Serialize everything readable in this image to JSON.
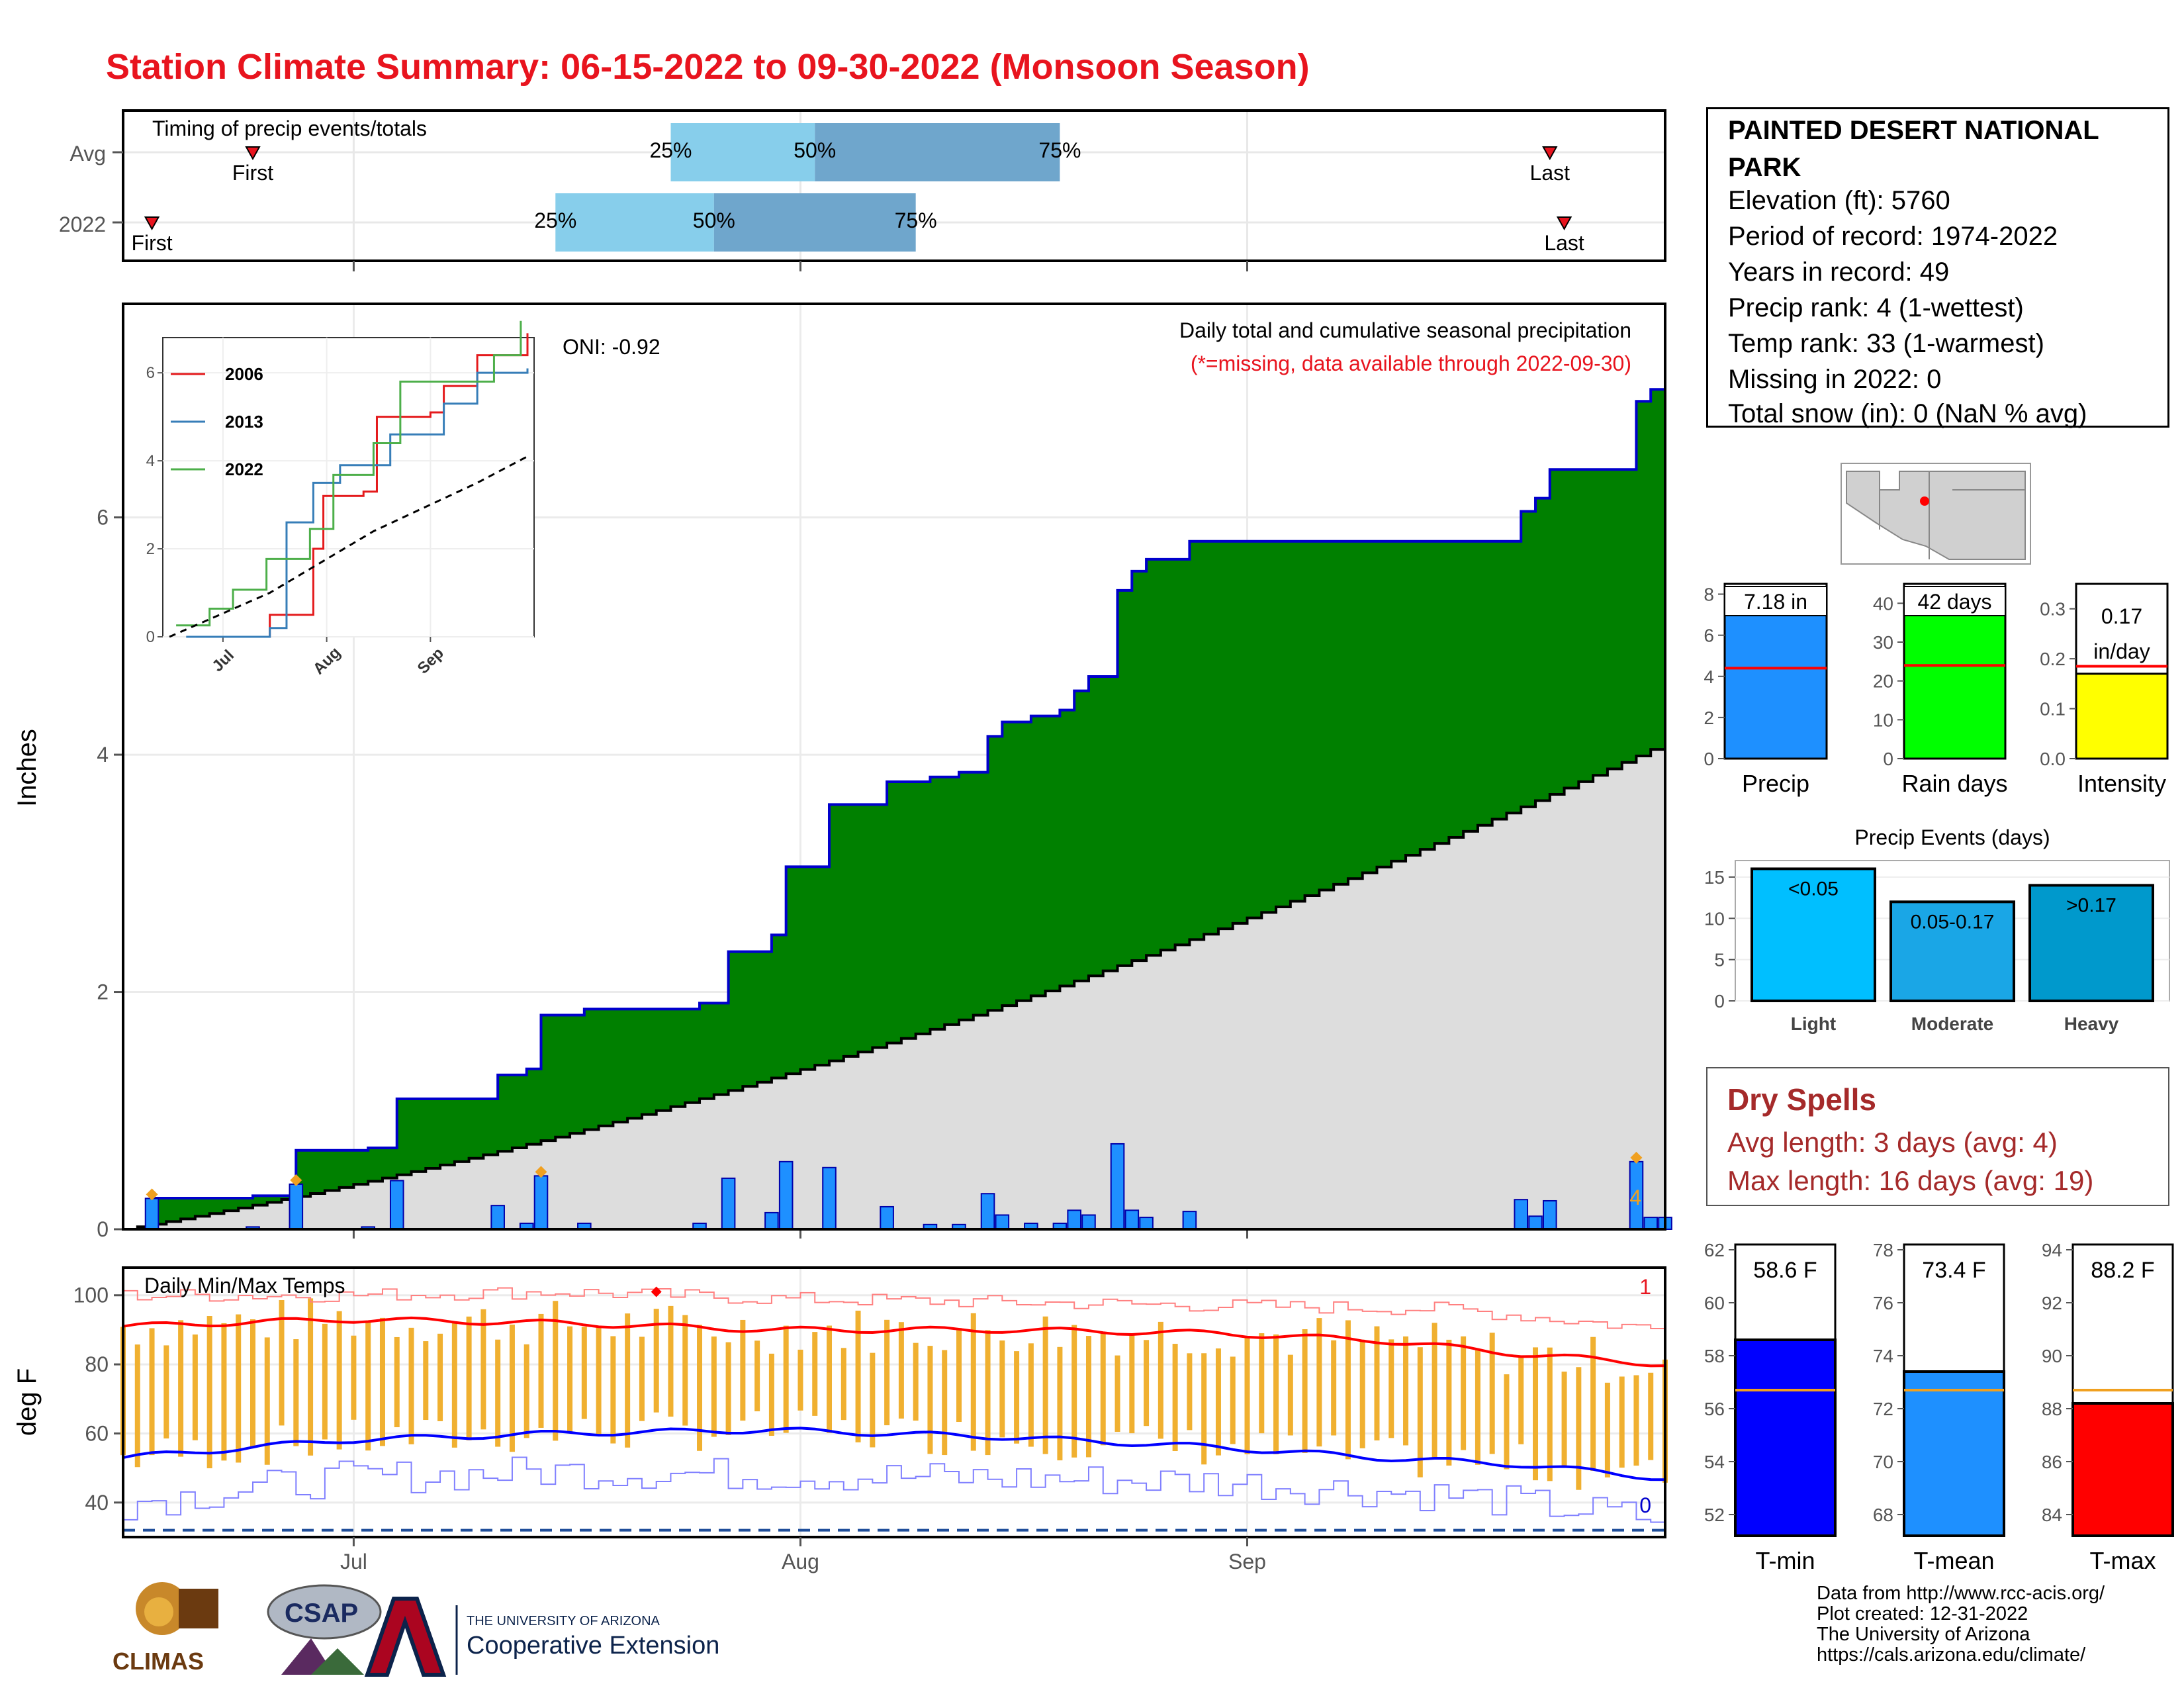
{
  "title": "Station Climate Summary: 06-15-2022 to 09-30-2022 (Monsoon Season)",
  "colors": {
    "title": "#e8141e",
    "cum_fill": "#008000",
    "cum_line": "#0000cc",
    "normal_fill": "#dddddd",
    "daily_bar": "#1e90ff",
    "quartile_light": "#87ceeb",
    "quartile_dark": "#6fa6cc",
    "tmax": "#ff0000",
    "tmin": "#0000ff",
    "temp_range": "#f0b030",
    "dry": "#a52a2a"
  },
  "timing_panel": {
    "label": "Timing of precip events/totals",
    "rows": [
      {
        "name": "Avg",
        "first_date": "2022-06-24",
        "last_date": "2022-09-22",
        "q25_date": "2022-07-23",
        "q50_date": "2022-08-02",
        "q75_date": "2022-08-19",
        "first_label": "First",
        "last_label": "Last",
        "q25_label": "25%",
        "q50_label": "50%",
        "q75_label": "75%"
      },
      {
        "name": "2022",
        "first_date": "2022-06-17",
        "last_date": "2022-09-23",
        "q25_date": "2022-07-15",
        "q50_date": "2022-07-26",
        "q75_date": "2022-08-09",
        "first_label": "First",
        "last_label": "Last",
        "q25_label": "25%",
        "q50_label": "50%",
        "q75_label": "75%"
      }
    ]
  },
  "precip_panel": {
    "ylabel": "Inches",
    "title": "Daily total and cumulative seasonal precipitation",
    "subtitle": "(*=missing, data available through 2022-09-30)",
    "oni": "ONI: -0.92",
    "corner_count": "4",
    "yticks": [
      "0",
      "2",
      "4",
      "6"
    ],
    "ylim": [
      0,
      7.8
    ]
  },
  "inset": {
    "yticks": [
      "0",
      "2",
      "4",
      "6"
    ],
    "xticks": [
      "Jul",
      "Aug",
      "Sep"
    ],
    "legend": [
      {
        "name": "2006",
        "color": "#e41a1c"
      },
      {
        "name": "2013",
        "color": "#377eb8"
      },
      {
        "name": "2022",
        "color": "#4daf4a"
      }
    ]
  },
  "temp_panel": {
    "label": "Daily Min/Max Temps",
    "ylabel": "deg F",
    "yticks": [
      "40",
      "60",
      "80",
      "100"
    ],
    "ylim": [
      30,
      108
    ],
    "record_high_count": "1",
    "record_low_count": "0",
    "freezing_line": 32
  },
  "xticks": [
    "Jul",
    "Aug",
    "Sep"
  ],
  "station": {
    "name_line1": "PAINTED DESERT NATIONAL",
    "name_line2": "PARK",
    "elevation": "Elevation (ft): 5760",
    "period": "Period of record: 1974-2022",
    "years": "Years in record: 49",
    "precip_rank": "Precip rank: 4 (1-wettest)",
    "temp_rank": "Temp rank: 33 (1-warmest)",
    "missing": "Missing in 2022: 0",
    "snow": "Total snow (in): 0 (NaN % avg)"
  },
  "small_bars": [
    {
      "label": "Precip",
      "value": 7.18,
      "value_label": "7.18 in",
      "avg": 4.4,
      "ymax": 8.5,
      "ticks": [
        "0",
        "2",
        "4",
        "6",
        "8"
      ],
      "tick_vals": [
        0,
        2,
        4,
        6,
        8
      ],
      "color": "#1e90ff"
    },
    {
      "label": "Rain days",
      "value": 42,
      "value_label": "42 days",
      "avg": 24,
      "ymax": 45,
      "ticks": [
        "0",
        "10",
        "20",
        "30",
        "40"
      ],
      "tick_vals": [
        0,
        10,
        20,
        30,
        40
      ],
      "color": "#00ff00"
    },
    {
      "label": "Intensity",
      "value": 0.17,
      "value_label": "0.17 in/day",
      "avg": 0.185,
      "ymax": 0.35,
      "ticks": [
        "0.0",
        "0.1",
        "0.2",
        "0.3"
      ],
      "tick_vals": [
        0,
        0.1,
        0.2,
        0.3
      ],
      "color": "#ffff00"
    }
  ],
  "events": {
    "title": "Precip Events (days)",
    "ticks": [
      "0",
      "5",
      "10",
      "15"
    ],
    "tick_vals": [
      0,
      5,
      10,
      15
    ],
    "ymax": 17,
    "categories": [
      "Light",
      "Moderate",
      "Heavy"
    ],
    "labels": [
      "<0.05",
      "0.05-0.17",
      ">0.17"
    ],
    "values": [
      16,
      12,
      14
    ],
    "colors": [
      "#00bfff",
      "#1aa6e6",
      "#0099cc"
    ]
  },
  "dry_spells": {
    "title": "Dry Spells",
    "avg_length": "Avg length: 3 days (avg: 4)",
    "max_length": "Max length: 16 days (avg: 19)"
  },
  "temp_bars": [
    {
      "label": "T-min",
      "value": 58.6,
      "value_label": "58.6 F",
      "avg": 56.7,
      "ymin": 51.2,
      "ymax": 62.2,
      "ticks": [
        "52",
        "54",
        "56",
        "58",
        "60",
        "62"
      ],
      "tick_vals": [
        52,
        54,
        56,
        58,
        60,
        62
      ],
      "color": "#0000ff"
    },
    {
      "label": "T-mean",
      "value": 73.4,
      "value_label": "73.4 F",
      "avg": 72.7,
      "ymin": 67.2,
      "ymax": 78.2,
      "ticks": [
        "68",
        "70",
        "72",
        "74",
        "76",
        "78"
      ],
      "tick_vals": [
        68,
        70,
        72,
        74,
        76,
        78
      ],
      "color": "#1e90ff"
    },
    {
      "label": "T-max",
      "value": 88.2,
      "value_label": "88.2 F",
      "avg": 88.7,
      "ymin": 83.2,
      "ymax": 94.2,
      "ticks": [
        "84",
        "86",
        "88",
        "90",
        "92",
        "94"
      ],
      "tick_vals": [
        84,
        86,
        88,
        90,
        92,
        94
      ],
      "color": "#ff0000"
    }
  ],
  "footer": {
    "line1": "Data from http://www.rcc-acis.org/",
    "line2": "Plot created: 12-31-2022",
    "line3": "The University of Arizona",
    "line4": "https://cals.arizona.edu/climate/"
  },
  "logos": {
    "climas": "CLIMAS",
    "csap": "CSAP",
    "ua_line1": "THE UNIVERSITY OF ARIZONA",
    "ua_line2": "Cooperative Extension"
  },
  "chart_data": [
    {
      "type": "area",
      "title": "Daily total and cumulative seasonal precipitation",
      "ylabel": "Inches",
      "x_range": [
        "2022-06-15",
        "2022-09-30"
      ],
      "ylim": [
        0,
        7.8
      ],
      "daily_precip": [
        {
          "date": "2022-06-17",
          "value": 0.26
        },
        {
          "date": "2022-06-24",
          "value": 0.02
        },
        {
          "date": "2022-06-27",
          "value": 0.38
        },
        {
          "date": "2022-07-02",
          "value": 0.02
        },
        {
          "date": "2022-07-04",
          "value": 0.41
        },
        {
          "date": "2022-07-11",
          "value": 0.2
        },
        {
          "date": "2022-07-13",
          "value": 0.05
        },
        {
          "date": "2022-07-14",
          "value": 0.45
        },
        {
          "date": "2022-07-17",
          "value": 0.05
        },
        {
          "date": "2022-07-25",
          "value": 0.05
        },
        {
          "date": "2022-07-27",
          "value": 0.43
        },
        {
          "date": "2022-07-30",
          "value": 0.14
        },
        {
          "date": "2022-07-31",
          "value": 0.57
        },
        {
          "date": "2022-08-03",
          "value": 0.52
        },
        {
          "date": "2022-08-07",
          "value": 0.19
        },
        {
          "date": "2022-08-10",
          "value": 0.04
        },
        {
          "date": "2022-08-12",
          "value": 0.04
        },
        {
          "date": "2022-08-14",
          "value": 0.3
        },
        {
          "date": "2022-08-15",
          "value": 0.12
        },
        {
          "date": "2022-08-17",
          "value": 0.05
        },
        {
          "date": "2022-08-19",
          "value": 0.05
        },
        {
          "date": "2022-08-20",
          "value": 0.16
        },
        {
          "date": "2022-08-21",
          "value": 0.12
        },
        {
          "date": "2022-08-23",
          "value": 0.72
        },
        {
          "date": "2022-08-24",
          "value": 0.16
        },
        {
          "date": "2022-08-25",
          "value": 0.1
        },
        {
          "date": "2022-08-28",
          "value": 0.15
        },
        {
          "date": "2022-09-20",
          "value": 0.25
        },
        {
          "date": "2022-09-21",
          "value": 0.11
        },
        {
          "date": "2022-09-22",
          "value": 0.24
        },
        {
          "date": "2022-09-28",
          "value": 0.57
        },
        {
          "date": "2022-09-29",
          "value": 0.1
        },
        {
          "date": "2022-09-30",
          "value": 0.1
        }
      ],
      "cumulative_2022_end": 7.18,
      "normal_cumulative_end": 4.1
    },
    {
      "type": "line",
      "title": "",
      "xticks": [
        "Jul",
        "Aug",
        "Sep"
      ],
      "yticks": [
        0,
        2,
        4,
        6
      ],
      "series": [
        {
          "name": "2006",
          "points": [
            [
              "2022-06-28",
              0.0
            ],
            [
              "2022-07-15",
              0.5
            ],
            [
              "2022-07-28",
              2.0
            ],
            [
              "2022-07-31",
              3.2
            ],
            [
              "2022-08-12",
              3.3
            ],
            [
              "2022-08-16",
              5.0
            ],
            [
              "2022-09-01",
              5.1
            ],
            [
              "2022-09-05",
              5.7
            ],
            [
              "2022-09-15",
              6.4
            ],
            [
              "2022-09-30",
              6.9
            ]
          ]
        },
        {
          "name": "2013",
          "points": [
            [
              "2022-06-20",
              0.0
            ],
            [
              "2022-07-15",
              0.2
            ],
            [
              "2022-07-20",
              2.6
            ],
            [
              "2022-07-28",
              3.5
            ],
            [
              "2022-08-05",
              3.9
            ],
            [
              "2022-08-20",
              4.6
            ],
            [
              "2022-09-05",
              5.3
            ],
            [
              "2022-09-15",
              6.0
            ],
            [
              "2022-09-30",
              6.1
            ]
          ]
        },
        {
          "name": "2022",
          "points": [
            [
              "2022-06-17",
              0.26
            ],
            [
              "2022-06-27",
              0.64
            ],
            [
              "2022-07-04",
              1.07
            ],
            [
              "2022-07-14",
              1.77
            ],
            [
              "2022-07-27",
              2.45
            ],
            [
              "2022-08-03",
              3.68
            ],
            [
              "2022-08-15",
              4.4
            ],
            [
              "2022-08-23",
              5.8
            ],
            [
              "2022-09-20",
              6.4
            ],
            [
              "2022-09-28",
              7.18
            ]
          ]
        },
        {
          "name": "",
          "points": [
            [
              "2022-06-15",
              0.0
            ],
            [
              "2022-07-15",
              1.0
            ],
            [
              "2022-08-15",
              2.4
            ],
            [
              "2022-09-15",
              3.5
            ],
            [
              "2022-09-30",
              4.1
            ]
          ]
        }
      ]
    },
    {
      "type": "line",
      "title": "Daily Min/Max Temps",
      "ylabel": "deg F",
      "ylim": [
        30,
        108
      ],
      "x_range": [
        "2022-06-15",
        "2022-09-30"
      ],
      "series": [
        {
          "name": "",
          "points": [
            [
              "2022-06-15",
              91
            ],
            [
              "2022-06-30",
              93
            ],
            [
              "2022-07-15",
              92
            ],
            [
              "2022-07-30",
              90
            ],
            [
              "2022-08-15",
              90
            ],
            [
              "2022-08-30",
              89
            ],
            [
              "2022-09-10",
              87
            ],
            [
              "2022-09-20",
              83
            ],
            [
              "2022-09-30",
              80
            ]
          ]
        },
        {
          "name": "",
          "points": [
            [
              "2022-06-15",
              53
            ],
            [
              "2022-06-30",
              58
            ],
            [
              "2022-07-15",
              60
            ],
            [
              "2022-07-30",
              61
            ],
            [
              "2022-08-15",
              59
            ],
            [
              "2022-08-30",
              56
            ],
            [
              "2022-09-10",
              53
            ],
            [
              "2022-09-20",
              51
            ],
            [
              "2022-09-30",
              47
            ]
          ]
        },
        {
          "name": "",
          "points": [
            [
              "2022-06-15",
              100
            ],
            [
              "2022-06-30",
              100
            ],
            [
              "2022-07-15",
              101
            ],
            [
              "2022-07-30",
              99
            ],
            [
              "2022-08-15",
              98
            ],
            [
              "2022-08-30",
              97
            ],
            [
              "2022-09-15",
              96
            ],
            [
              "2022-09-30",
              90
            ]
          ]
        },
        {
          "name": "",
          "points": [
            [
              "2022-06-15",
              40
            ],
            [
              "2022-06-30",
              47
            ],
            [
              "2022-07-15",
              49
            ],
            [
              "2022-07-30",
              48
            ],
            [
              "2022-08-15",
              47
            ],
            [
              "2022-08-30",
              46
            ],
            [
              "2022-09-15",
              42
            ],
            [
              "2022-09-30",
              35
            ]
          ]
        }
      ]
    }
  ]
}
